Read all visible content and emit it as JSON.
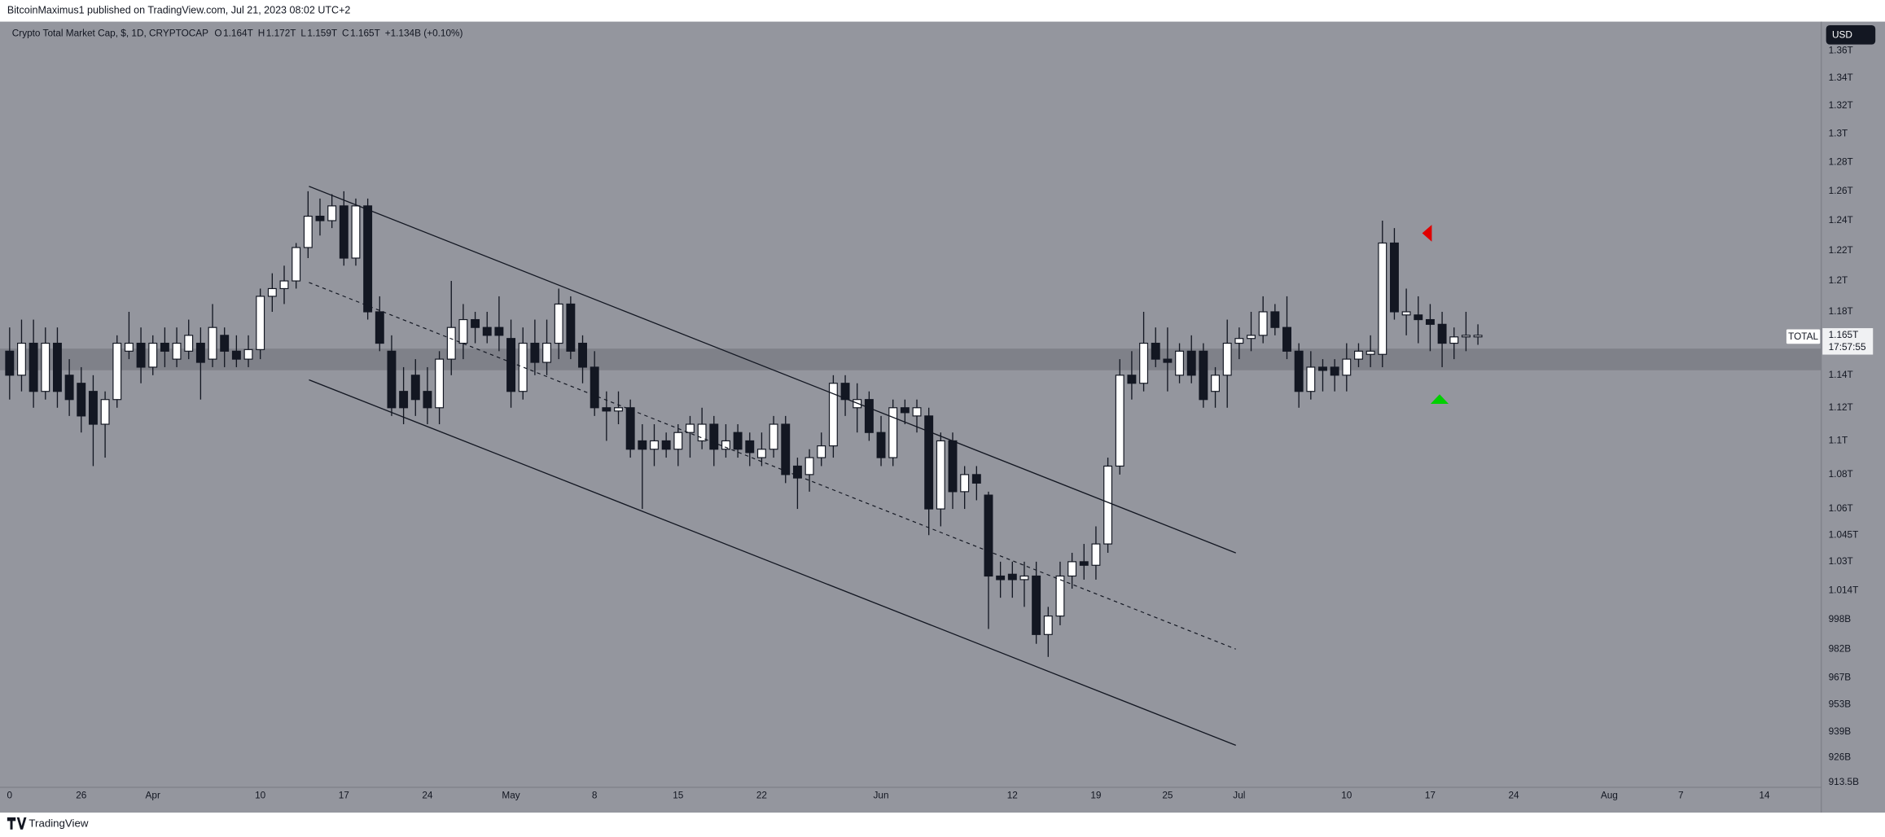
{
  "header": {
    "publisher": "BitcoinMaximus1 published on TradingView.com, Jul 21, 2023 08:02 UTC+2",
    "symbol": "Crypto Total Market Cap, $, 1D, CRYPTOCAP",
    "ohlc": [
      {
        "key": "O",
        "value": "1.164T"
      },
      {
        "key": "H",
        "value": "1.172T"
      },
      {
        "key": "L",
        "value": "1.159T"
      },
      {
        "key": "C",
        "value": "1.165T"
      }
    ],
    "change": "+1.134B (+0.10%)",
    "currency": "USD"
  },
  "price_tag": {
    "series": "TOTAL",
    "price": "1.165T",
    "countdown": "17:57:55"
  },
  "footer": {
    "brand": "TradingView"
  },
  "chart_data": {
    "type": "candlestick",
    "log_scale": true,
    "grid": false,
    "up_color": "#ffffff",
    "down_color": "#131722",
    "categories": [
      "0",
      null,
      null,
      null,
      null,
      null,
      "26",
      null,
      null,
      null,
      null,
      null,
      "Apr",
      null,
      null,
      null,
      null,
      null,
      null,
      null,
      null,
      "10",
      null,
      null,
      null,
      null,
      null,
      null,
      "17",
      null,
      null,
      null,
      null,
      null,
      null,
      "24",
      null,
      null,
      null,
      null,
      null,
      null,
      "May",
      null,
      null,
      null,
      null,
      null,
      null,
      "8",
      null,
      null,
      null,
      null,
      null,
      null,
      "15",
      null,
      null,
      null,
      null,
      null,
      null,
      "22",
      null,
      null,
      null,
      null,
      null,
      null,
      null,
      null,
      null,
      "Jun",
      null,
      null,
      null,
      null,
      null,
      null,
      null,
      null,
      null,
      null,
      "12",
      null,
      null,
      null,
      null,
      null,
      null,
      "19",
      null,
      null,
      null,
      null,
      null,
      "25",
      null,
      null,
      null,
      null,
      null,
      "Jul",
      null,
      null,
      null,
      null,
      null,
      null,
      null,
      null,
      "10",
      null,
      null,
      null,
      null,
      null,
      null,
      "17",
      null,
      null,
      null,
      null,
      null,
      null,
      "24",
      null,
      null,
      null,
      null,
      null,
      null,
      null,
      "Aug",
      null,
      null,
      null,
      null,
      null,
      "7",
      null,
      null,
      null,
      null,
      null,
      null,
      "14",
      null,
      null,
      null,
      null
    ],
    "open": [
      1155000000000.0,
      1140000000000.0,
      1160000000000.0,
      1130000000000.0,
      1160000000000.0,
      1140000000000.0,
      1135000000000.0,
      1130000000000.0,
      1110000000000.0,
      1125000000000.0,
      1155000000000.0,
      1160000000000.0,
      1145000000000.0,
      1160000000000.0,
      1150000000000.0,
      1155000000000.0,
      1160000000000.0,
      1150000000000.0,
      1165000000000.0,
      1155000000000.0,
      1150000000000.0,
      1156000000000.0,
      1190000000000.0,
      1195000000000.0,
      1200000000000.0,
      1222000000000.0,
      1243000000000.0,
      1240000000000.0,
      1250000000000.0,
      1215000000000.0,
      1250000000000.0,
      1180000000000.0,
      1155000000000.0,
      1130000000000.0,
      1140000000000.0,
      1130000000000.0,
      1120000000000.0,
      1150000000000.0,
      1160000000000.0,
      1175000000000.0,
      1170000000000.0,
      1170000000000.0,
      1163000000000.0,
      1130000000000.0,
      1160000000000.0,
      1148000000000.0,
      1160000000000.0,
      1185000000000.0,
      1160000000000.0,
      1145000000000.0,
      1120000000000.0,
      1118000000000.0,
      1120000000000.0,
      1100000000000.0,
      1095000000000.0,
      1100000000000.0,
      1095000000000.0,
      1105000000000.0,
      1100000000000.0,
      1110000000000.0,
      1095000000000.0,
      1105000000000.0,
      1100000000000.0,
      1090000000000.0,
      1095000000000.0,
      1110000000000.0,
      1085000000000.0,
      1080000000000.0,
      1090000000000.0,
      1097000000000.0,
      1135000000000.0,
      1120000000000.0,
      1125000000000.0,
      1105000000000.0,
      1090000000000.0,
      1120000000000.0,
      1115000000000.0,
      1115000000000.0,
      1060000000000.0,
      1100000000000.0,
      1070000000000.0,
      1080000000000.0,
      1068000000000.0,
      1022000000000.0,
      1023000000000.0,
      1020000000000.0,
      1022000000000.0,
      990000000000.0,
      1000000000000.0,
      1022000000000.0,
      1030000000000.0,
      1028000000000.0,
      1040000000000.0,
      1085000000000.0,
      1140000000000.0,
      1135000000000.0,
      1160000000000.0,
      1150000000000.0,
      1140000000000.0,
      1155000000000.0,
      1155000000000.0,
      1130000000000.0,
      1140000000000.0,
      1160000000000.0,
      1163000000000.0,
      1165000000000.0,
      1180000000000.0,
      1170000000000.0,
      1155000000000.0,
      1130000000000.0,
      1145000000000.0,
      1145000000000.0,
      1140000000000.0,
      1150000000000.0,
      1153000000000.0,
      1153000000000.0,
      1225000000000.0,
      1178000000000.0,
      1178000000000.0,
      1175000000000.0,
      1172000000000.0,
      1160000000000.0,
      1164000000000.0,
      1164000000000.0,
      null,
      null,
      null,
      null,
      null,
      null,
      null,
      null,
      null,
      null,
      null,
      null,
      null,
      null,
      null,
      null,
      null,
      null,
      null,
      null,
      null,
      null,
      null,
      null,
      null,
      null,
      null,
      null
    ],
    "high": [
      1170000000000.0,
      1175000000000.0,
      1175000000000.0,
      1170000000000.0,
      1170000000000.0,
      1150000000000.0,
      1145000000000.0,
      1140000000000.0,
      1130000000000.0,
      1165000000000.0,
      1180000000000.0,
      1170000000000.0,
      1165000000000.0,
      1170000000000.0,
      1170000000000.0,
      1175000000000.0,
      1170000000000.0,
      1185000000000.0,
      1170000000000.0,
      1165000000000.0,
      1165000000000.0,
      1195000000000.0,
      1205000000000.0,
      1210000000000.0,
      1225000000000.0,
      1260000000000.0,
      1255000000000.0,
      1258000000000.0,
      1260000000000.0,
      1255000000000.0,
      1255000000000.0,
      1190000000000.0,
      1165000000000.0,
      1145000000000.0,
      1150000000000.0,
      1145000000000.0,
      1155000000000.0,
      1200000000000.0,
      1185000000000.0,
      1180000000000.0,
      1180000000000.0,
      1190000000000.0,
      1175000000000.0,
      1170000000000.0,
      1175000000000.0,
      1175000000000.0,
      1195000000000.0,
      1190000000000.0,
      1165000000000.0,
      1155000000000.0,
      1130000000000.0,
      1130000000000.0,
      1125000000000.0,
      1110000000000.0,
      1110000000000.0,
      1105000000000.0,
      1110000000000.0,
      1115000000000.0,
      1120000000000.0,
      1115000000000.0,
      1110000000000.0,
      1110000000000.0,
      1105000000000.0,
      1105000000000.0,
      1115000000000.0,
      1115000000000.0,
      1090000000000.0,
      1095000000000.0,
      1105000000000.0,
      1140000000000.0,
      1140000000000.0,
      1135000000000.0,
      1130000000000.0,
      1115000000000.0,
      1125000000000.0,
      1125000000000.0,
      1125000000000.0,
      1120000000000.0,
      1105000000000.0,
      1105000000000.0,
      1085000000000.0,
      1085000000000.0,
      1070000000000.0,
      1030000000000.0,
      1030000000000.0,
      1030000000000.0,
      1030000000000.0,
      1005000000000.0,
      1030000000000.0,
      1035000000000.0,
      1040000000000.0,
      1050000000000.0,
      1090000000000.0,
      1150000000000.0,
      1155000000000.0,
      1180000000000.0,
      1170000000000.0,
      1170000000000.0,
      1160000000000.0,
      1165000000000.0,
      1160000000000.0,
      1145000000000.0,
      1175000000000.0,
      1170000000000.0,
      1180000000000.0,
      1190000000000.0,
      1185000000000.0,
      1190000000000.0,
      1160000000000.0,
      1155000000000.0,
      1150000000000.0,
      1150000000000.0,
      1160000000000.0,
      1160000000000.0,
      1165000000000.0,
      1240000000000.0,
      1235000000000.0,
      1195000000000.0,
      1190000000000.0,
      1185000000000.0,
      1180000000000.0,
      1170000000000.0,
      1180000000000.0,
      1172000000000.0,
      null,
      null,
      null,
      null,
      null,
      null,
      null,
      null,
      null,
      null,
      null,
      null,
      null,
      null,
      null,
      null,
      null,
      null,
      null,
      null,
      null,
      null,
      null,
      null,
      null,
      null,
      null,
      null
    ],
    "low": [
      1125000000000.0,
      1130000000000.0,
      1120000000000.0,
      1125000000000.0,
      1120000000000.0,
      1115000000000.0,
      1105000000000.0,
      1085000000000.0,
      1090000000000.0,
      1120000000000.0,
      1150000000000.0,
      1135000000000.0,
      1140000000000.0,
      1145000000000.0,
      1145000000000.0,
      1150000000000.0,
      1125000000000.0,
      1145000000000.0,
      1145000000000.0,
      1145000000000.0,
      1145000000000.0,
      1150000000000.0,
      1180000000000.0,
      1185000000000.0,
      1195000000000.0,
      1215000000000.0,
      1230000000000.0,
      1235000000000.0,
      1210000000000.0,
      1210000000000.0,
      1175000000000.0,
      1155000000000.0,
      1115000000000.0,
      1110000000000.0,
      1115000000000.0,
      1110000000000.0,
      1110000000000.0,
      1140000000000.0,
      1150000000000.0,
      1160000000000.0,
      1160000000000.0,
      1155000000000.0,
      1120000000000.0,
      1125000000000.0,
      1140000000000.0,
      1140000000000.0,
      1150000000000.0,
      1150000000000.0,
      1135000000000.0,
      1115000000000.0,
      1100000000000.0,
      1110000000000.0,
      1090000000000.0,
      1060000000000.0,
      1085000000000.0,
      1090000000000.0,
      1085000000000.0,
      1090000000000.0,
      1095000000000.0,
      1085000000000.0,
      1090000000000.0,
      1090000000000.0,
      1085000000000.0,
      1085000000000.0,
      1090000000000.0,
      1075000000000.0,
      1060000000000.0,
      1070000000000.0,
      1085000000000.0,
      1090000000000.0,
      1115000000000.0,
      1105000000000.0,
      1100000000000.0,
      1085000000000.0,
      1085000000000.0,
      1110000000000.0,
      1105000000000.0,
      1045000000000.0,
      1050000000000.0,
      1060000000000.0,
      1060000000000.0,
      1065000000000.0,
      993000000000.0,
      1010000000000.0,
      1010000000000.0,
      1005000000000.0,
      985000000000.0,
      978000000000.0,
      995000000000.0,
      1015000000000.0,
      1020000000000.0,
      1020000000000.0,
      1035000000000.0,
      1080000000000.0,
      1125000000000.0,
      1130000000000.0,
      1145000000000.0,
      1130000000000.0,
      1135000000000.0,
      1135000000000.0,
      1120000000000.0,
      1120000000000.0,
      1120000000000.0,
      1150000000000.0,
      1155000000000.0,
      1160000000000.0,
      1165000000000.0,
      1150000000000.0,
      1120000000000.0,
      1125000000000.0,
      1130000000000.0,
      1130000000000.0,
      1130000000000.0,
      1145000000000.0,
      1145000000000.0,
      1145000000000.0,
      1175000000000.0,
      1165000000000.0,
      1160000000000.0,
      1155000000000.0,
      1145000000000.0,
      1150000000000.0,
      1155000000000.0,
      1159000000000.0,
      null,
      null,
      null,
      null,
      null,
      null,
      null,
      null,
      null,
      null,
      null,
      null,
      null,
      null,
      null,
      null,
      null,
      null,
      null,
      null,
      null,
      null,
      null,
      null,
      null,
      null,
      null,
      null
    ],
    "close": [
      1140000000000.0,
      1160000000000.0,
      1130000000000.0,
      1160000000000.0,
      1130000000000.0,
      1125000000000.0,
      1115000000000.0,
      1110000000000.0,
      1125000000000.0,
      1160000000000.0,
      1160000000000.0,
      1145000000000.0,
      1160000000000.0,
      1155000000000.0,
      1160000000000.0,
      1165000000000.0,
      1148000000000.0,
      1170000000000.0,
      1155000000000.0,
      1150000000000.0,
      1156000000000.0,
      1190000000000.0,
      1195000000000.0,
      1200000000000.0,
      1222000000000.0,
      1243000000000.0,
      1240000000000.0,
      1250000000000.0,
      1215000000000.0,
      1250000000000.0,
      1180000000000.0,
      1160000000000.0,
      1120000000000.0,
      1120000000000.0,
      1125000000000.0,
      1120000000000.0,
      1150000000000.0,
      1170000000000.0,
      1175000000000.0,
      1170000000000.0,
      1165000000000.0,
      1165000000000.0,
      1130000000000.0,
      1160000000000.0,
      1148000000000.0,
      1160000000000.0,
      1185000000000.0,
      1155000000000.0,
      1145000000000.0,
      1120000000000.0,
      1118000000000.0,
      1120000000000.0,
      1095000000000.0,
      1095000000000.0,
      1100000000000.0,
      1095000000000.0,
      1105000000000.0,
      1110000000000.0,
      1110000000000.0,
      1095000000000.0,
      1100000000000.0,
      1095000000000.0,
      1093000000000.0,
      1095000000000.0,
      1110000000000.0,
      1080000000000.0,
      1078000000000.0,
      1090000000000.0,
      1097000000000.0,
      1135000000000.0,
      1125000000000.0,
      1125000000000.0,
      1105000000000.0,
      1090000000000.0,
      1120000000000.0,
      1117000000000.0,
      1120000000000.0,
      1060000000000.0,
      1100000000000.0,
      1070000000000.0,
      1080000000000.0,
      1075000000000.0,
      1022000000000.0,
      1020000000000.0,
      1020000000000.0,
      1022000000000.0,
      990000000000.0,
      1000000000000.0,
      1022000000000.0,
      1030000000000.0,
      1028000000000.0,
      1040000000000.0,
      1085000000000.0,
      1140000000000.0,
      1135000000000.0,
      1160000000000.0,
      1150000000000.0,
      1148000000000.0,
      1155000000000.0,
      1140000000000.0,
      1125000000000.0,
      1140000000000.0,
      1160000000000.0,
      1163000000000.0,
      1165000000000.0,
      1180000000000.0,
      1170000000000.0,
      1155000000000.0,
      1130000000000.0,
      1145000000000.0,
      1143000000000.0,
      1140000000000.0,
      1150000000000.0,
      1155000000000.0,
      1155000000000.0,
      1225000000000.0,
      1180000000000.0,
      1180000000000.0,
      1175000000000.0,
      1172000000000.0,
      1160000000000.0,
      1164000000000.0,
      1165000000000.0,
      1165000000000.0,
      null,
      null,
      null,
      null,
      null,
      null,
      null,
      null,
      null,
      null,
      null,
      null,
      null,
      null,
      null,
      null,
      null,
      null,
      null,
      null,
      null,
      null,
      null,
      null,
      null,
      null,
      null,
      null
    ],
    "ylim": [
      911000000000.0,
      1380000000000.0
    ],
    "yticks": [
      {
        "value": 1360000000000.0,
        "label": "1.36T"
      },
      {
        "value": 1340000000000.0,
        "label": "1.34T"
      },
      {
        "value": 1320000000000.0,
        "label": "1.32T"
      },
      {
        "value": 1300000000000.0,
        "label": "1.3T"
      },
      {
        "value": 1280000000000.0,
        "label": "1.28T"
      },
      {
        "value": 1260000000000.0,
        "label": "1.26T"
      },
      {
        "value": 1240000000000.0,
        "label": "1.24T"
      },
      {
        "value": 1220000000000.0,
        "label": "1.22T"
      },
      {
        "value": 1200000000000.0,
        "label": "1.2T"
      },
      {
        "value": 1180000000000.0,
        "label": "1.18T"
      },
      {
        "value": 1140000000000.0,
        "label": "1.14T"
      },
      {
        "value": 1120000000000.0,
        "label": "1.12T"
      },
      {
        "value": 1100000000000.0,
        "label": "1.1T"
      },
      {
        "value": 1080000000000.0,
        "label": "1.08T"
      },
      {
        "value": 1060000000000.0,
        "label": "1.06T"
      },
      {
        "value": 1045000000000.0,
        "label": "1.045T"
      },
      {
        "value": 1030000000000.0,
        "label": "1.03T"
      },
      {
        "value": 1014000000000.0,
        "label": "1.014T"
      },
      {
        "value": 998000000000.0,
        "label": "998B"
      },
      {
        "value": 982000000000.0,
        "label": "982B"
      },
      {
        "value": 967000000000.0,
        "label": "967B"
      },
      {
        "value": 953000000000.0,
        "label": "953B"
      },
      {
        "value": 939000000000.0,
        "label": "939B"
      },
      {
        "value": 926000000000.0,
        "label": "926B"
      },
      {
        "value": 913500000000.0,
        "label": "913.5B"
      }
    ]
  }
}
